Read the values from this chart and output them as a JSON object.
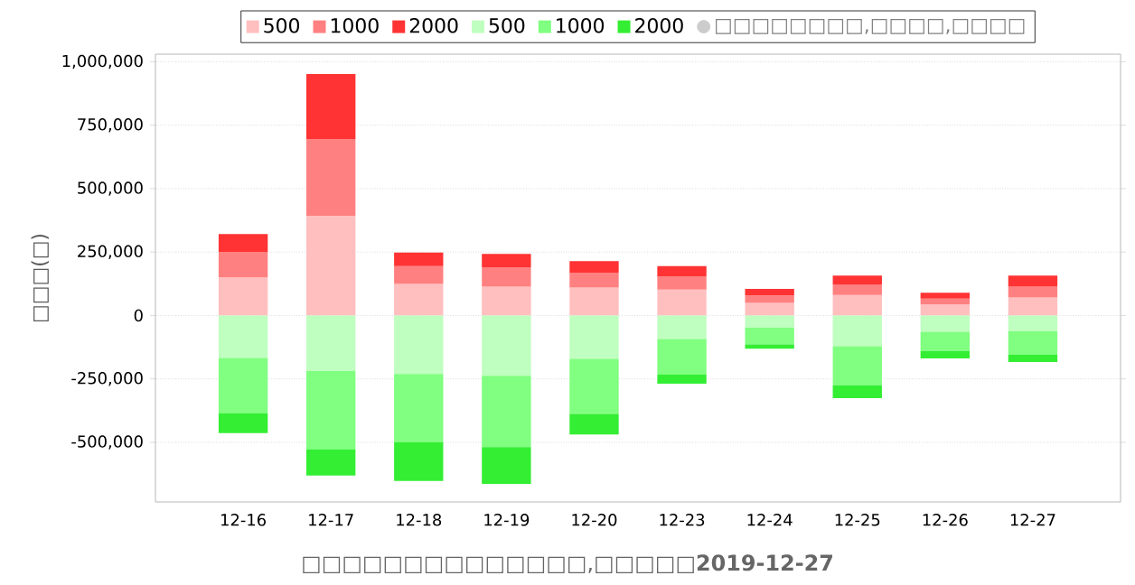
{
  "chart_data": {
    "type": "bar",
    "stacked": true,
    "ylabel": "□□□(□)",
    "categories": [
      "12-16",
      "12-17",
      "12-18",
      "12-19",
      "12-20",
      "12-23",
      "12-24",
      "12-25",
      "12-26",
      "12-27"
    ],
    "series": [
      {
        "name": "500",
        "color": "#ffbfbf",
        "values": [
          150000,
          393000,
          124000,
          114000,
          110000,
          102000,
          50000,
          81000,
          43000,
          71000
        ]
      },
      {
        "name": "1000",
        "color": "#ff8080",
        "values": [
          100000,
          302000,
          71000,
          76000,
          59000,
          53000,
          29000,
          40000,
          24000,
          43000
        ]
      },
      {
        "name": "2000",
        "color": "#ff3333",
        "values": [
          71000,
          257000,
          53000,
          53000,
          45000,
          40000,
          26000,
          36000,
          23000,
          43000
        ]
      },
      {
        "name": "500",
        "color": "#bfffbf",
        "values": [
          -167000,
          -219000,
          -231000,
          -238000,
          -171000,
          -93000,
          -48000,
          -121000,
          -64000,
          -62000
        ]
      },
      {
        "name": "1000",
        "color": "#80ff80",
        "values": [
          -219000,
          -310000,
          -269000,
          -281000,
          -217000,
          -140000,
          -66000,
          -155000,
          -76000,
          -93000
        ]
      },
      {
        "name": "2000",
        "color": "#33ee33",
        "values": [
          -78000,
          -102000,
          -152000,
          -145000,
          -81000,
          -36000,
          -17000,
          -50000,
          -29000,
          -28000
        ]
      },
      {
        "name": "□□□□□□□□,□□□□,□□□□",
        "type": "scatter",
        "color": "#cccccc",
        "values": [
          null,
          null,
          null,
          null,
          null,
          null,
          null,
          null,
          null,
          null
        ]
      }
    ],
    "ylim": [
      -735000,
      1030000
    ],
    "yticks": [
      {
        "value": -500000,
        "label": "-500,000"
      },
      {
        "value": -250000,
        "label": "-250,000"
      },
      0,
      {
        "value": 250000,
        "label": "250,000"
      },
      {
        "value": 500000,
        "label": "500,000"
      },
      {
        "value": 750000,
        "label": "750,000"
      },
      {
        "value": 1000000,
        "label": "1,000,000"
      }
    ],
    "grid": "y",
    "legend": "top",
    "annotations": [
      "□□□□□□□□□□□□□□,□□□□□**2019-12-27**"
    ]
  }
}
